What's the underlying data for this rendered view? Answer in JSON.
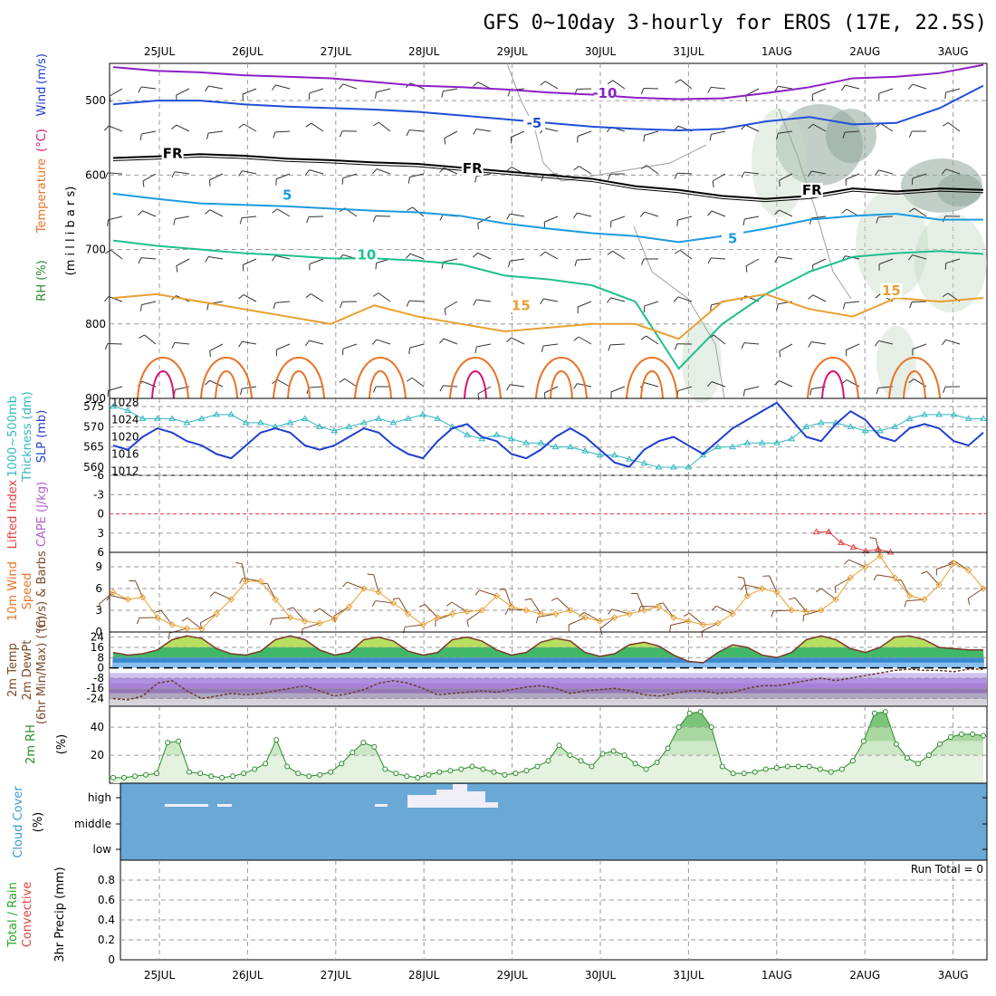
{
  "title": "GFS 0~10day 3-hourly for EROS (17E, 22.5S)",
  "date_labels": [
    "25JUL",
    "26JUL",
    "27JUL",
    "28JUL",
    "29JUL",
    "30JUL",
    "31JUL",
    "1AUG",
    "2AUG",
    "3AUG"
  ],
  "run_total_label": "Run Total = 0",
  "colors": {
    "t_m10": "#8b1fc4",
    "t_m5": "#1f4fd6",
    "t_fr": "#000000",
    "t_p5": "#1c9be0",
    "t_p10": "#1fbf8f",
    "t_p15": "#e8a033",
    "t_p20": "#e8742a",
    "t_p25": "#d8146e",
    "thickness": "#2fb7c0",
    "slp": "#1f3fcf",
    "lifted": "#e04040",
    "wind": "#e8a033",
    "barb": "#7a4a2a",
    "rh": "#2a8a2a",
    "cloud": "#6aa8d6",
    "cloud_gap": "#f0eef6"
  },
  "chart_data": [
    {
      "id": "upper_air",
      "type": "contour",
      "ylabel_parts": [
        "RH (%)",
        "Temperature",
        "(°C)",
        "Wind",
        "(m/s)"
      ],
      "ylabel_millibars": "(m i l l i b a r s)",
      "y_ticks": [
        500,
        600,
        700,
        800,
        900
      ],
      "ylim": [
        450,
        900
      ],
      "contours": [
        {
          "label": "-10",
          "color_key": "t_m10",
          "label_at": [
            5.05,
            495
          ],
          "y": [
            455,
            460,
            462,
            466,
            468,
            470,
            475,
            480,
            482,
            485,
            489,
            492,
            496,
            498,
            497,
            490,
            482,
            470,
            468,
            463,
            452
          ]
        },
        {
          "label": "-5",
          "color_key": "t_m5",
          "label_at": [
            4.25,
            535
          ],
          "y": [
            505,
            500,
            500,
            505,
            508,
            510,
            512,
            515,
            520,
            525,
            530,
            535,
            538,
            540,
            538,
            528,
            522,
            532,
            530,
            510,
            480
          ]
        },
        {
          "label": "FR",
          "color_key": "t_fr",
          "label_at": [
            0.15,
            576
          ],
          "y": [
            577,
            575,
            572,
            574,
            578,
            580,
            583,
            585,
            590,
            595,
            600,
            605,
            615,
            620,
            628,
            632,
            628,
            618,
            622,
            618,
            620
          ]
        },
        {
          "label": "FR",
          "color_key": "t_fr",
          "label_at": [
            3.55,
            596
          ],
          "y": []
        },
        {
          "label": "FR",
          "color_key": "t_fr",
          "label_at": [
            7.4,
            625
          ],
          "y": []
        },
        {
          "label": "5",
          "color_key": "t_p5",
          "label_at": [
            1.45,
            632
          ],
          "y": [
            625,
            632,
            638,
            640,
            642,
            645,
            648,
            650,
            655,
            665,
            672,
            678,
            682,
            690,
            682,
            672,
            660,
            655,
            652,
            660,
            660
          ]
        },
        {
          "label": "5",
          "color_key": "t_p5",
          "label_at": [
            6.5,
            690
          ],
          "y": []
        },
        {
          "label": "10",
          "color_key": "t_p10",
          "label_at": [
            2.35,
            712
          ],
          "y": [
            688,
            695,
            700,
            705,
            708,
            712,
            712,
            715,
            720,
            735,
            740,
            748,
            770,
            860,
            800,
            760,
            730,
            710,
            705,
            702,
            706
          ]
        },
        {
          "label": "15",
          "color_key": "t_p15",
          "label_at": [
            4.1,
            780
          ],
          "y": [
            765,
            760,
            770,
            780,
            790,
            800,
            775,
            790,
            800,
            810,
            805,
            800,
            800,
            820,
            770,
            760,
            780,
            790,
            765,
            770,
            765
          ]
        },
        {
          "label": "15",
          "color_key": "t_p15",
          "label_at": [
            8.3,
            760
          ],
          "y": []
        }
      ]
    },
    {
      "id": "thickness_slp",
      "type": "line",
      "ylabel_parts": [
        "1000~500mb",
        "Thickness (dm)",
        "SLP (mb)"
      ],
      "left_ticks": [
        560,
        565,
        570,
        575
      ],
      "left_lim": [
        558,
        577
      ],
      "right_ticks": [
        1012,
        1016,
        1020,
        1024,
        1028
      ],
      "right_lim": [
        1011,
        1029
      ],
      "series": [
        {
          "color_key": "thickness",
          "axis": "left",
          "marker": "triangle",
          "values": [
            575,
            574,
            572,
            572,
            572,
            571,
            572,
            573,
            573,
            571,
            571,
            570,
            571,
            572,
            570,
            569,
            570,
            571,
            572,
            571,
            572,
            573,
            572,
            570,
            568,
            567,
            568,
            567,
            566,
            566,
            565,
            565,
            564,
            563,
            563,
            562,
            561,
            560,
            560,
            560,
            563,
            565,
            565,
            566,
            566,
            566,
            567,
            570,
            571,
            571,
            570,
            569,
            569,
            570,
            572,
            573,
            573,
            573,
            572,
            572
          ]
        },
        {
          "name": "SLP",
          "color_key": "slp",
          "axis": "right",
          "values": [
            1018,
            1017,
            1020,
            1022,
            1021,
            1019,
            1018,
            1016,
            1015,
            1018,
            1021,
            1022,
            1021,
            1018,
            1017,
            1018,
            1020,
            1022,
            1021,
            1018,
            1016,
            1015,
            1019,
            1022,
            1023,
            1020,
            1019,
            1016,
            1015,
            1017,
            1020,
            1022,
            1020,
            1017,
            1014,
            1013,
            1017,
            1019,
            1020,
            1018,
            1016,
            1019,
            1022,
            1024,
            1026,
            1028,
            1024,
            1020,
            1019,
            1023,
            1026,
            1024,
            1020,
            1019,
            1022,
            1023,
            1022,
            1019,
            1018,
            1021
          ]
        }
      ]
    },
    {
      "id": "lifted_cape",
      "type": "line",
      "ylabel_parts": [
        "Lifted Index",
        "CAPE (J/kg)"
      ],
      "y_ticks": [
        -6,
        -3,
        0,
        3,
        6
      ],
      "y_tick_labels": [
        "-6",
        "-3",
        "0",
        "3",
        "6"
      ],
      "ylim": [
        6,
        -6
      ],
      "zero_line": 0,
      "series": [
        {
          "color_key": "lifted",
          "values": [
            2.8,
            2.8,
            4.5,
            5.2,
            5.8,
            5.5,
            6.0
          ]
        }
      ]
    },
    {
      "id": "wind10m",
      "type": "line",
      "ylabel_parts": [
        "10m Wind",
        "Speed",
        "(m/s) & Barbs"
      ],
      "y_ticks": [
        0,
        3,
        6,
        9
      ],
      "ylim": [
        0,
        11
      ],
      "series": [
        {
          "color_key": "wind",
          "marker": "diamond",
          "values": [
            5.5,
            4.5,
            4.8,
            2.0,
            1.0,
            0.5,
            0.4,
            2.5,
            4.5,
            7.0,
            7.0,
            4.5,
            2.0,
            1.5,
            1.2,
            1.8,
            3.5,
            6.0,
            5.5,
            4.0,
            2.5,
            1.0,
            2.0,
            2.5,
            2.8,
            3.0,
            5.0,
            3.5,
            3.0,
            2.5,
            2.5,
            3.0,
            2.0,
            1.5,
            2.0,
            2.5,
            3.0,
            3.5,
            2.0,
            1.5,
            1.0,
            1.2,
            2.5,
            5.0,
            6.0,
            5.5,
            3.0,
            2.8,
            3.0,
            4.5,
            7.5,
            9.0,
            10.5,
            7.5,
            5.0,
            4.5,
            6.5,
            9.5,
            8.5,
            6.0
          ]
        }
      ]
    },
    {
      "id": "temp2m",
      "type": "area",
      "ylabel_parts": [
        "2m Temp",
        "2m DewPt",
        "(6hr Min/Max) (°C)"
      ],
      "y_ticks": [
        -24,
        -16,
        -8,
        0,
        8,
        16,
        24
      ],
      "ylim": [
        -30,
        28
      ],
      "series": [
        {
          "name": "temp",
          "values": [
            12,
            10,
            11,
            14,
            22,
            25,
            23,
            15,
            11,
            10,
            13,
            22,
            25,
            22,
            14,
            10,
            12,
            22,
            24,
            21,
            13,
            10,
            12,
            22,
            24,
            21,
            14,
            10,
            12,
            20,
            23,
            21,
            12,
            9,
            11,
            18,
            20,
            17,
            10,
            5,
            4,
            12,
            18,
            16,
            10,
            8,
            12,
            22,
            25,
            22,
            15,
            12,
            16,
            24,
            25,
            22,
            16,
            15,
            14,
            14
          ]
        },
        {
          "name": "dewpoint",
          "values": [
            -24,
            -25,
            -22,
            -12,
            -10,
            -18,
            -24,
            -22,
            -20,
            -21,
            -20,
            -18,
            -16,
            -14,
            -18,
            -22,
            -20,
            -17,
            -12,
            -10,
            -12,
            -16,
            -21,
            -20,
            -19,
            -18,
            -19,
            -17,
            -15,
            -14,
            -16,
            -20,
            -18,
            -17,
            -16,
            -18,
            -21,
            -22,
            -20,
            -18,
            -18,
            -20,
            -19,
            -16,
            -14,
            -14,
            -12,
            -10,
            -8,
            -10,
            -8,
            -6,
            -4,
            -2,
            -1,
            -2,
            -2,
            -3,
            -1,
            -1
          ]
        }
      ]
    },
    {
      "id": "rh2m",
      "type": "area",
      "ylabel_parts": [
        "2m RH",
        "(%)"
      ],
      "y_ticks": [
        20,
        40
      ],
      "ylim": [
        0,
        55
      ],
      "series": [
        {
          "color_key": "rh",
          "marker": "circle",
          "values": [
            4,
            4,
            5,
            6,
            7,
            29,
            30,
            8,
            7,
            5,
            4,
            5,
            7,
            10,
            14,
            31,
            12,
            7,
            5,
            6,
            8,
            14,
            22,
            29,
            26,
            10,
            7,
            5,
            4,
            6,
            8,
            9,
            10,
            12,
            10,
            8,
            6,
            7,
            9,
            12,
            16,
            27,
            20,
            16,
            12,
            21,
            23,
            20,
            14,
            10,
            15,
            25,
            40,
            50,
            51,
            40,
            12,
            7,
            7,
            8,
            10,
            11,
            12,
            12,
            12,
            10,
            8,
            10,
            16,
            30,
            50,
            51,
            28,
            18,
            14,
            20,
            28,
            33,
            35,
            35,
            34
          ]
        }
      ]
    },
    {
      "id": "cloud_cover",
      "type": "heatmap",
      "ylabel_parts": [
        "Cloud Cover",
        "(%)"
      ],
      "levels": [
        "high",
        "middle",
        "low"
      ]
    },
    {
      "id": "precip",
      "type": "bar",
      "ylabel_parts": [
        "Total / Rain",
        "Convective",
        "3hr Precip (mm)"
      ],
      "y_ticks": [
        0,
        0.2,
        0.4,
        0.6,
        0.8
      ],
      "ylim": [
        0,
        1.0
      ],
      "values": []
    }
  ]
}
